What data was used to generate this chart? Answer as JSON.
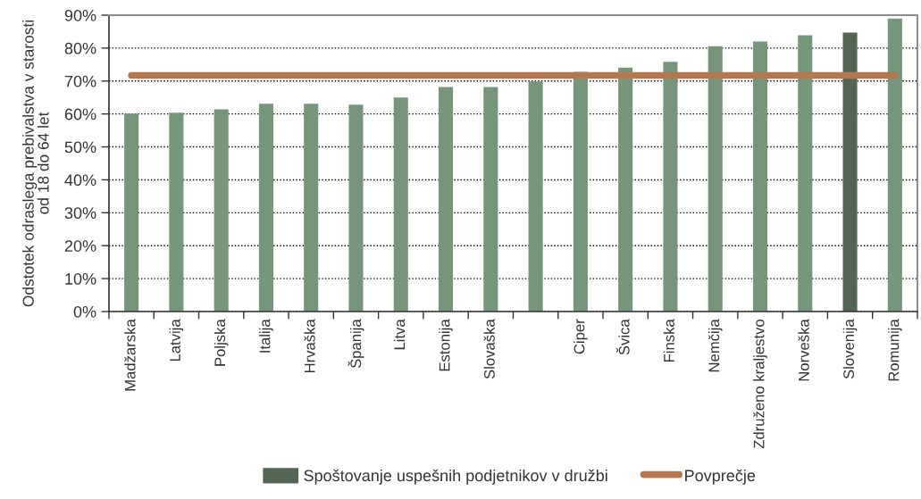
{
  "chart_data": {
    "type": "bar",
    "ylabel": "Odstotek odraslega prebivalstva v starosti\nod 18 do 64 let",
    "categories": [
      "Madžarska",
      "Latvija",
      "Poljska",
      "Italija",
      "Hrvaška",
      "Španija",
      "Litva",
      "Estonija",
      "Slovaška",
      null,
      "Ciper",
      "Švica",
      "Finska",
      "Nemčija",
      "Združeno kraljestvo",
      "Norveška",
      "Slovenija",
      "Romunija"
    ],
    "series": [
      {
        "name": "Spoštovanje uspešnih podjetnikov v družbi",
        "color": "#536654",
        "colors": [
          "#76967a",
          "#76967a",
          "#76967a",
          "#76967a",
          "#76967a",
          "#76967a",
          "#76967a",
          "#76967a",
          "#76967a",
          "#76967a",
          "#76967a",
          "#76967a",
          "#76967a",
          "#76967a",
          "#76967a",
          "#76967a",
          "#536654",
          "#76967a"
        ],
        "values": [
          60.1,
          60.4,
          61.4,
          63.1,
          63.1,
          62.8,
          65.0,
          68.2,
          68.2,
          69.9,
          72.8,
          74.1,
          75.8,
          80.6,
          82.0,
          83.9,
          84.7,
          89.0
        ]
      },
      {
        "name": "Povprečje",
        "type": "line",
        "color": "#b5784e",
        "values": [
          71.7,
          71.7,
          71.7,
          71.7,
          71.7,
          71.7,
          71.7,
          71.7,
          71.7,
          71.7,
          71.7,
          71.7,
          71.7,
          71.7,
          71.7,
          71.7,
          71.7,
          71.7
        ]
      }
    ],
    "ylim": [
      0,
      90
    ],
    "yticks": [
      {
        "value": 0,
        "label": "0%"
      },
      {
        "value": 10,
        "label": "10%"
      },
      {
        "value": 20,
        "label": "20%"
      },
      {
        "value": 30,
        "label": "30%"
      },
      {
        "value": 40,
        "label": "40%"
      },
      {
        "value": 50,
        "label": "50%"
      },
      {
        "value": 60,
        "label": "60%"
      },
      {
        "value": 70,
        "label": "70%"
      },
      {
        "value": 80,
        "label": "80%"
      },
      {
        "value": 90,
        "label": "90%"
      }
    ],
    "grid": "y",
    "legend": "bottom"
  }
}
